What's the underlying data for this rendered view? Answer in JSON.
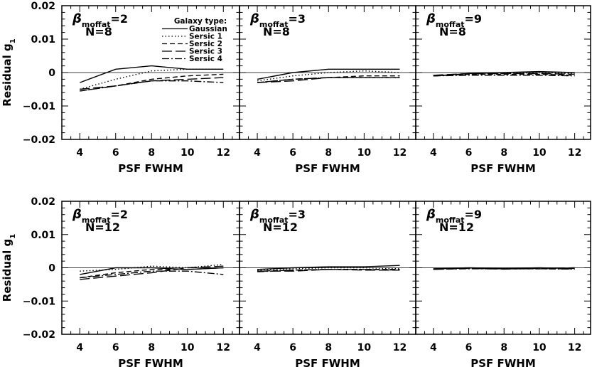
{
  "legend": {
    "title": "Galaxy type:",
    "entries": [
      {
        "label": "Gaussian",
        "style": "solid"
      },
      {
        "label": "Sersic 1",
        "style": "dotted"
      },
      {
        "label": "Sersic 2",
        "style": "shortdash"
      },
      {
        "label": "Sersic 3",
        "style": "longdash"
      },
      {
        "label": "Sersic 4",
        "style": "dashdot"
      }
    ]
  },
  "chart_data": [
    {
      "type": "line",
      "panel": "top-left",
      "beta_symbol": "β",
      "beta_sub": "moffat",
      "beta_value": "=2",
      "n_text": "N=8",
      "xlabel": "PSF FWHM",
      "ylabel": "Residual g",
      "ylabel_sub": "1",
      "xlim": [
        3,
        12.9
      ],
      "ylim": [
        -0.02,
        0.02
      ],
      "xticks": [
        "4",
        "6",
        "8",
        "10",
        "12"
      ],
      "yticks": [
        "−0.02",
        "−0.01",
        "0",
        "0.01",
        "0.02"
      ],
      "x": [
        4,
        6,
        8,
        10,
        12
      ],
      "series": [
        {
          "name": "Gaussian",
          "values": [
            -0.003,
            0.001,
            0.002,
            0.001,
            0.001
          ]
        },
        {
          "name": "Sersic 1",
          "values": [
            -0.005,
            -0.002,
            0.0005,
            0.001,
            0.001
          ]
        },
        {
          "name": "Sersic 2",
          "values": [
            -0.0055,
            -0.004,
            -0.002,
            -0.001,
            -0.0005
          ]
        },
        {
          "name": "Sersic 3",
          "values": [
            -0.005,
            -0.004,
            -0.0025,
            -0.002,
            -0.0015
          ]
        },
        {
          "name": "Sersic 4",
          "values": [
            -0.0055,
            -0.004,
            -0.0025,
            -0.0025,
            -0.003
          ]
        }
      ]
    },
    {
      "type": "line",
      "panel": "top-middle",
      "beta_symbol": "β",
      "beta_sub": "moffat",
      "beta_value": "=3",
      "n_text": "N=8",
      "xlabel": "PSF FWHM",
      "xlim": [
        3,
        12.9
      ],
      "ylim": [
        -0.02,
        0.02
      ],
      "xticks": [
        "4",
        "6",
        "8",
        "10",
        "12"
      ],
      "x": [
        4,
        6,
        8,
        10,
        12
      ],
      "series": [
        {
          "name": "Gaussian",
          "values": [
            -0.002,
            0.0,
            0.001,
            0.001,
            0.001
          ]
        },
        {
          "name": "Sersic 1",
          "values": [
            -0.0025,
            -0.001,
            0.0,
            0.0005,
            0.0
          ]
        },
        {
          "name": "Sersic 2",
          "values": [
            -0.003,
            -0.002,
            -0.0015,
            -0.001,
            -0.001
          ]
        },
        {
          "name": "Sersic 3",
          "values": [
            -0.003,
            -0.0025,
            -0.0015,
            -0.0015,
            -0.0015
          ]
        },
        {
          "name": "Sersic 4",
          "values": [
            -0.003,
            -0.002,
            -0.0015,
            -0.0015,
            -0.0015
          ]
        }
      ]
    },
    {
      "type": "line",
      "panel": "top-right",
      "beta_symbol": "β",
      "beta_sub": "moffat",
      "beta_value": "=9",
      "n_text": "N=8",
      "xlabel": "PSF FWHM",
      "xlim": [
        3,
        12.9
      ],
      "ylim": [
        -0.02,
        0.02
      ],
      "xticks": [
        "4",
        "6",
        "8",
        "10",
        "12"
      ],
      "x": [
        4,
        6,
        8,
        10,
        12
      ],
      "series": [
        {
          "name": "Gaussian",
          "values": [
            -0.001,
            -0.0003,
            0.0,
            0.0003,
            0.0
          ]
        },
        {
          "name": "Sersic 1",
          "values": [
            -0.001,
            -0.0005,
            -0.0003,
            0.0,
            -0.0003
          ]
        },
        {
          "name": "Sersic 2",
          "values": [
            -0.001,
            -0.0005,
            -0.0005,
            -0.0005,
            -0.0008
          ]
        },
        {
          "name": "Sersic 3",
          "values": [
            -0.0008,
            -0.0003,
            -0.0003,
            -0.0003,
            -0.0005
          ]
        },
        {
          "name": "Sersic 4",
          "values": [
            -0.001,
            -0.0008,
            -0.0008,
            -0.0008,
            -0.001
          ]
        }
      ]
    },
    {
      "type": "line",
      "panel": "bottom-left",
      "beta_symbol": "β",
      "beta_sub": "moffat",
      "beta_value": "=2",
      "n_text": "N=12",
      "xlabel": "PSF FWHM",
      "ylabel": "Residual g",
      "ylabel_sub": "1",
      "xlim": [
        3,
        12.9
      ],
      "ylim": [
        -0.02,
        0.02
      ],
      "xticks": [
        "4",
        "6",
        "8",
        "10",
        "12"
      ],
      "yticks": [
        "−0.02",
        "−0.01",
        "0",
        "0.01",
        "0.02"
      ],
      "x": [
        4,
        6,
        8,
        10,
        12
      ],
      "series": [
        {
          "name": "Gaussian",
          "values": [
            -0.002,
            0.0,
            0.0,
            -0.0005,
            0.0
          ]
        },
        {
          "name": "Sersic 1",
          "values": [
            -0.001,
            -0.0005,
            0.0005,
            0.0,
            0.001
          ]
        },
        {
          "name": "Sersic 2",
          "values": [
            -0.003,
            -0.0015,
            -0.0005,
            -0.0005,
            0.0
          ]
        },
        {
          "name": "Sersic 3",
          "values": [
            -0.0035,
            -0.0025,
            -0.0015,
            0.0,
            0.0005
          ]
        },
        {
          "name": "Sersic 4",
          "values": [
            -0.003,
            -0.002,
            -0.001,
            -0.001,
            -0.002
          ]
        }
      ]
    },
    {
      "type": "line",
      "panel": "bottom-middle",
      "beta_symbol": "β",
      "beta_sub": "moffat",
      "beta_value": "=3",
      "n_text": "N=12",
      "xlabel": "PSF FWHM",
      "xlim": [
        3,
        12.9
      ],
      "ylim": [
        -0.02,
        0.02
      ],
      "xticks": [
        "4",
        "6",
        "8",
        "10",
        "12"
      ],
      "x": [
        4,
        6,
        8,
        10,
        12
      ],
      "series": [
        {
          "name": "Gaussian",
          "values": [
            -0.0005,
            0.0,
            0.0003,
            0.0003,
            0.0007
          ]
        },
        {
          "name": "Sersic 1",
          "values": [
            -0.0007,
            -0.0003,
            0.0,
            0.0,
            -0.0003
          ]
        },
        {
          "name": "Sersic 2",
          "values": [
            -0.001,
            -0.0007,
            -0.0005,
            -0.0005,
            -0.0005
          ]
        },
        {
          "name": "Sersic 3",
          "values": [
            -0.001,
            -0.001,
            -0.0005,
            -0.0007,
            -0.0007
          ]
        },
        {
          "name": "Sersic 4",
          "values": [
            -0.0012,
            -0.0007,
            -0.0005,
            -0.0005,
            -0.0007
          ]
        }
      ]
    },
    {
      "type": "line",
      "panel": "bottom-right",
      "beta_symbol": "β",
      "beta_sub": "moffat",
      "beta_value": "=9",
      "n_text": "N=12",
      "xlabel": "PSF FWHM",
      "xlim": [
        3,
        12.9
      ],
      "ylim": [
        -0.02,
        0.02
      ],
      "xticks": [
        "4",
        "6",
        "8",
        "10",
        "12"
      ],
      "x": [
        4,
        6,
        8,
        10,
        12
      ],
      "series": [
        {
          "name": "Gaussian",
          "values": [
            -0.0003,
            0.0,
            -0.0002,
            0.0,
            -0.0002
          ]
        },
        {
          "name": "Sersic 1",
          "values": [
            -0.0004,
            -0.0002,
            -0.0002,
            -0.0002,
            -0.0004
          ]
        },
        {
          "name": "Sersic 2",
          "values": [
            -0.0003,
            -0.0001,
            -0.0003,
            -0.0003,
            -0.0003
          ]
        },
        {
          "name": "Sersic 3",
          "values": [
            -0.0005,
            -0.0002,
            -0.0004,
            -0.0002,
            0.0
          ]
        },
        {
          "name": "Sersic 4",
          "values": [
            -0.0004,
            -0.0003,
            -0.0003,
            -0.0003,
            -0.0004
          ]
        }
      ]
    }
  ]
}
